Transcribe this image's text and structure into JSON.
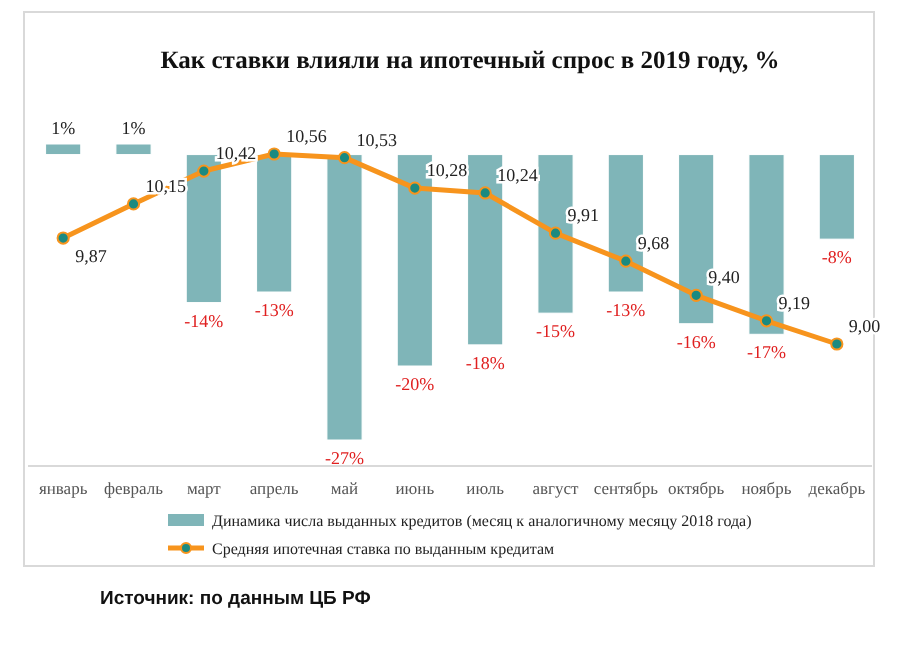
{
  "chart_data": {
    "type": "bar",
    "title": "Как ставки влияли на ипотечный спрос в 2019 году, %",
    "categories": [
      "январь",
      "февраль",
      "март",
      "апрель",
      "май",
      "июнь",
      "июль",
      "август",
      "сентябрь",
      "октябрь",
      "ноябрь",
      "декабрь"
    ],
    "series": [
      {
        "name": "Динамика  числа выданных кредитов (месяц к аналогичному месяцу 2018 года)",
        "color": "#7fb5b8",
        "values": [
          1,
          1,
          -14,
          -13,
          -27,
          -20,
          -18,
          -15,
          -13,
          -16,
          -17,
          -8
        ],
        "value_labels": [
          "1%",
          "1%",
          "-14%",
          "-13%",
          "-27%",
          "-20%",
          "-18%",
          "-15%",
          "-13%",
          "-16%",
          "-17%",
          "-8%"
        ]
      },
      {
        "name": "Средняя ипотечная ставка по выданным кредитам",
        "type": "line",
        "axis": "y2",
        "color": "#f7941d",
        "values": [
          9.87,
          10.15,
          10.42,
          10.56,
          10.53,
          10.28,
          10.24,
          9.91,
          9.68,
          9.4,
          9.19,
          9.0
        ],
        "value_labels": [
          "9,87",
          "10,15",
          "10,42",
          "10,56",
          "10,53",
          "10,28",
          "10,24",
          "9,91",
          "9,68",
          "9,40",
          "9,19",
          "9,00"
        ]
      }
    ],
    "tick_labels": "x",
    "legend": "bottom",
    "marker": "circle",
    "line_style": "solid",
    "annotations": [
      "Источник: по данным ЦБ РФ"
    ]
  }
}
